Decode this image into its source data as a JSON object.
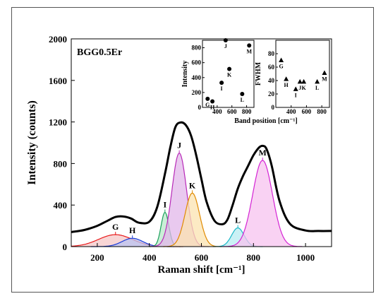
{
  "chart_data": {
    "type": "line",
    "sample_label": "BGG0.5Er",
    "xlabel": "Raman shift [cm⁻¹]",
    "ylabel": "Intensity (counts)",
    "xlim": [
      100,
      1100
    ],
    "ylim": [
      0,
      2000
    ],
    "xticks": [
      200,
      400,
      600,
      800,
      1000
    ],
    "yticks": [
      0,
      400,
      800,
      1200,
      1600,
      2000
    ],
    "grid": false,
    "baseline": 130,
    "peaks": [
      {
        "label": "G",
        "center": 270,
        "height": 115,
        "sigma": 65,
        "color": "#e8191a",
        "fill": "#f6c7c7"
      },
      {
        "label": "H",
        "center": 335,
        "height": 80,
        "sigma": 40,
        "color": "#1a3cd8",
        "fill": "#b9c3f2"
      },
      {
        "label": "I",
        "center": 460,
        "height": 330,
        "sigma": 15,
        "color": "#1aa05a",
        "fill": "#b8e8c9"
      },
      {
        "label": "J",
        "center": 515,
        "height": 900,
        "sigma": 28,
        "color": "#b82ab8",
        "fill": "#e2b7ea"
      },
      {
        "label": "K",
        "center": 565,
        "height": 515,
        "sigma": 28,
        "color": "#e08a00",
        "fill": "#fbe3b0"
      },
      {
        "label": "L",
        "center": 740,
        "height": 180,
        "sigma": 24,
        "color": "#1ab8c8",
        "fill": "#b8ecf1"
      },
      {
        "label": "M",
        "center": 835,
        "height": 830,
        "sigma": 38,
        "color": "#d423d4",
        "fill": "#f7c3ef"
      }
    ],
    "total_curve": {
      "x": [
        100,
        150,
        200,
        240,
        270,
        300,
        330,
        360,
        400,
        430,
        460,
        480,
        500,
        520,
        540,
        560,
        580,
        600,
        620,
        650,
        680,
        700,
        720,
        740,
        760,
        780,
        800,
        820,
        835,
        850,
        870,
        900,
        940,
        1000,
        1050,
        1100
      ],
      "y": [
        140,
        160,
        200,
        250,
        285,
        290,
        270,
        230,
        240,
        380,
        700,
        950,
        1150,
        1195,
        1170,
        1070,
        880,
        650,
        430,
        250,
        215,
        260,
        400,
        560,
        680,
        780,
        880,
        950,
        970,
        940,
        780,
        440,
        220,
        155,
        150,
        150
      ]
    },
    "inset": {
      "xlabel": "Band position [cm⁻¹]",
      "left": {
        "ylabel": "Intensity",
        "xlim": [
          200,
          900
        ],
        "ylim": [
          0,
          900
        ],
        "xticks": [
          400,
          600,
          800
        ],
        "yticks": [
          0,
          200,
          400,
          600,
          800
        ],
        "marker": "circle",
        "points": [
          {
            "label": "G",
            "x": 270,
            "y": 115
          },
          {
            "label": "H",
            "x": 335,
            "y": 80
          },
          {
            "label": "I",
            "x": 460,
            "y": 330
          },
          {
            "label": "J",
            "x": 515,
            "y": 900
          },
          {
            "label": "K",
            "x": 565,
            "y": 515
          },
          {
            "label": "L",
            "x": 740,
            "y": 180
          },
          {
            "label": "M",
            "x": 835,
            "y": 830
          }
        ]
      },
      "right": {
        "ylabel": "FWHM",
        "xlim": [
          200,
          900
        ],
        "ylim": [
          0,
          100
        ],
        "xticks": [
          400,
          600,
          800
        ],
        "yticks": [
          0,
          20,
          40,
          60,
          80
        ],
        "marker": "triangle",
        "points": [
          {
            "label": "G",
            "x": 270,
            "y": 70
          },
          {
            "label": "H",
            "x": 335,
            "y": 42
          },
          {
            "label": "I",
            "x": 460,
            "y": 27
          },
          {
            "label": "J",
            "x": 515,
            "y": 38
          },
          {
            "label": "K",
            "x": 565,
            "y": 38
          },
          {
            "label": "L",
            "x": 740,
            "y": 38
          },
          {
            "label": "M",
            "x": 835,
            "y": 51
          }
        ]
      }
    }
  }
}
